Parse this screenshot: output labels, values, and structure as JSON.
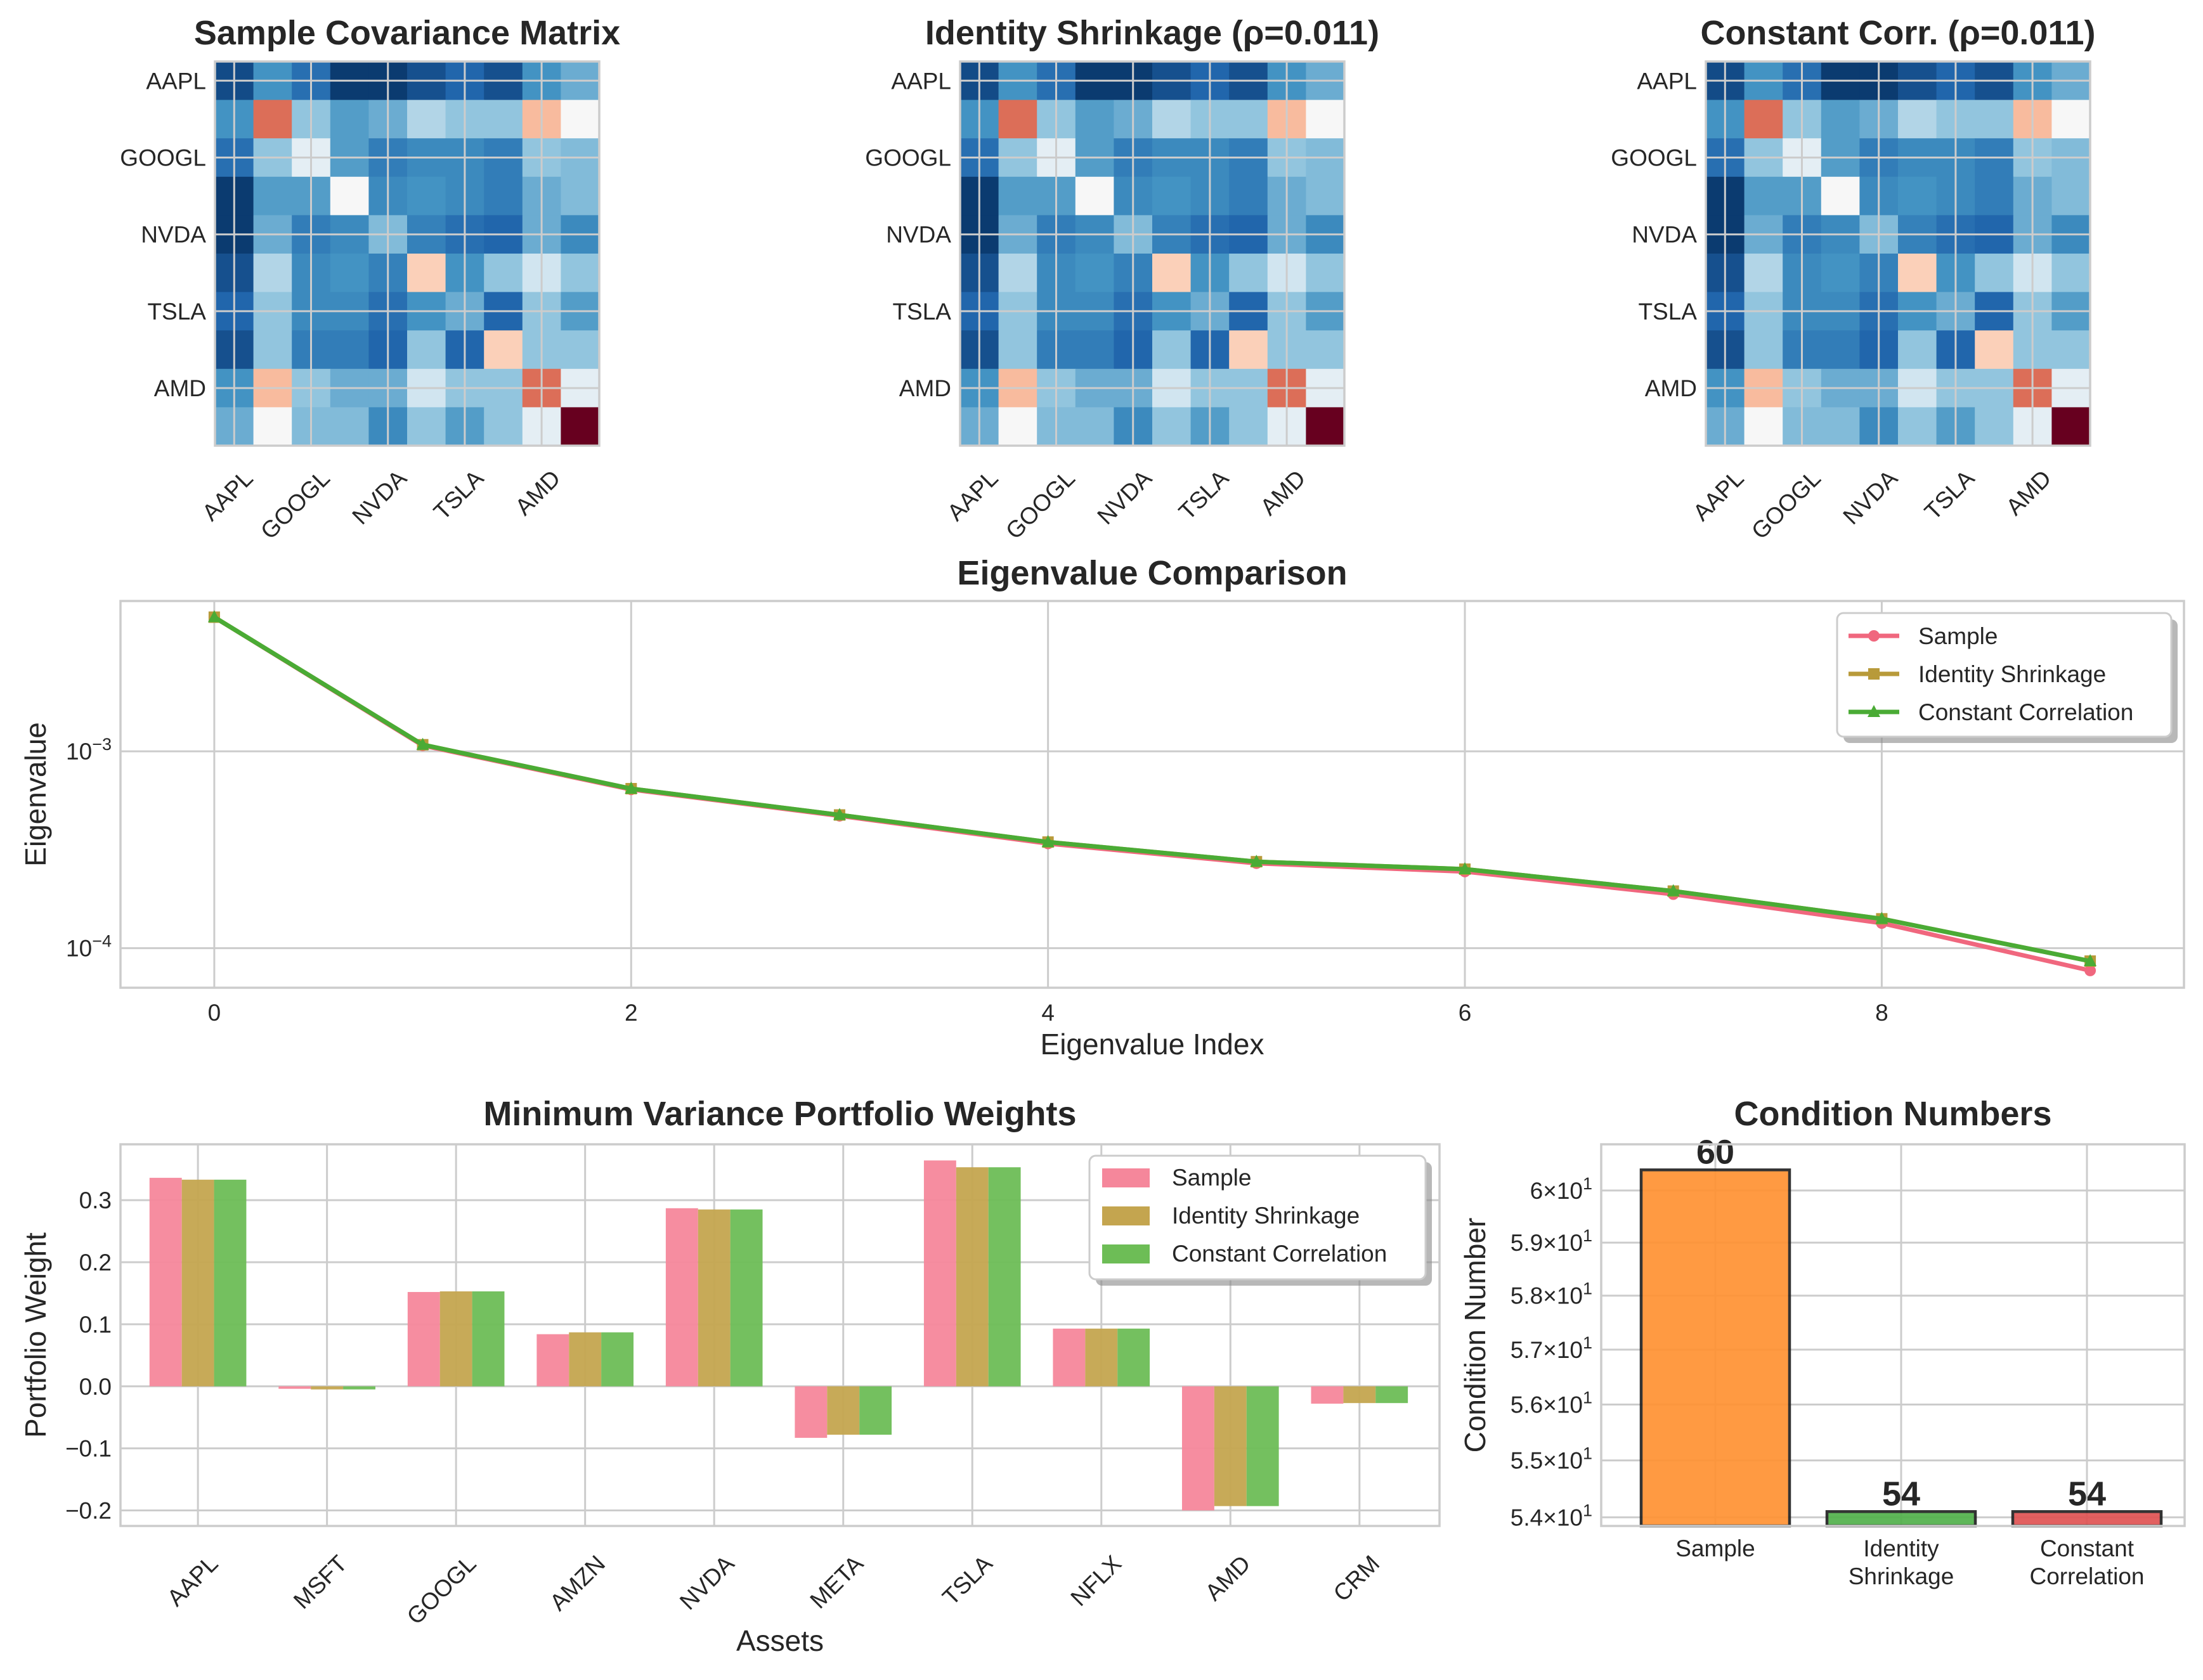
{
  "chart_data": [
    {
      "type": "heatmap",
      "title": "Sample Covariance Matrix",
      "colormap": "RdBu_r",
      "tick_labels": [
        "AAPL",
        "GOOGL",
        "NVDA",
        "TSLA",
        "AMD"
      ],
      "size": 10,
      "tick_every": 2,
      "values": [
        [
          0.05,
          0.2,
          0.12,
          0.02,
          0.02,
          0.06,
          0.1,
          0.06,
          0.2,
          0.25
        ],
        [
          0.2,
          0.78,
          0.3,
          0.22,
          0.25,
          0.35,
          0.3,
          0.3,
          0.66,
          0.5
        ],
        [
          0.12,
          0.3,
          0.45,
          0.22,
          0.15,
          0.18,
          0.18,
          0.15,
          0.3,
          0.28
        ],
        [
          0.02,
          0.22,
          0.22,
          0.5,
          0.18,
          0.2,
          0.18,
          0.15,
          0.25,
          0.28
        ],
        [
          0.02,
          0.25,
          0.15,
          0.18,
          0.28,
          0.16,
          0.12,
          0.1,
          0.25,
          0.18
        ],
        [
          0.06,
          0.35,
          0.18,
          0.2,
          0.16,
          0.62,
          0.2,
          0.3,
          0.4,
          0.3
        ],
        [
          0.1,
          0.3,
          0.18,
          0.18,
          0.12,
          0.2,
          0.25,
          0.1,
          0.3,
          0.22
        ],
        [
          0.06,
          0.3,
          0.15,
          0.15,
          0.1,
          0.3,
          0.1,
          0.62,
          0.3,
          0.3
        ],
        [
          0.2,
          0.66,
          0.3,
          0.25,
          0.25,
          0.4,
          0.3,
          0.3,
          0.78,
          0.45
        ],
        [
          0.25,
          0.5,
          0.28,
          0.28,
          0.18,
          0.3,
          0.22,
          0.3,
          0.45,
          1.0
        ]
      ]
    },
    {
      "type": "heatmap",
      "title": "Identity Shrinkage (ρ=0.011)",
      "colormap": "RdBu_r",
      "tick_labels": [
        "AAPL",
        "GOOGL",
        "NVDA",
        "TSLA",
        "AMD"
      ],
      "size": 10,
      "tick_every": 2,
      "values": [
        [
          0.05,
          0.2,
          0.12,
          0.02,
          0.02,
          0.06,
          0.1,
          0.06,
          0.2,
          0.25
        ],
        [
          0.2,
          0.78,
          0.3,
          0.22,
          0.25,
          0.35,
          0.3,
          0.3,
          0.66,
          0.5
        ],
        [
          0.12,
          0.3,
          0.45,
          0.22,
          0.15,
          0.18,
          0.18,
          0.15,
          0.3,
          0.28
        ],
        [
          0.02,
          0.22,
          0.22,
          0.5,
          0.18,
          0.2,
          0.18,
          0.15,
          0.25,
          0.28
        ],
        [
          0.02,
          0.25,
          0.15,
          0.18,
          0.28,
          0.16,
          0.12,
          0.1,
          0.25,
          0.18
        ],
        [
          0.06,
          0.35,
          0.18,
          0.2,
          0.16,
          0.62,
          0.2,
          0.3,
          0.4,
          0.3
        ],
        [
          0.1,
          0.3,
          0.18,
          0.18,
          0.12,
          0.2,
          0.25,
          0.1,
          0.3,
          0.22
        ],
        [
          0.06,
          0.3,
          0.15,
          0.15,
          0.1,
          0.3,
          0.1,
          0.62,
          0.3,
          0.3
        ],
        [
          0.2,
          0.66,
          0.3,
          0.25,
          0.25,
          0.4,
          0.3,
          0.3,
          0.78,
          0.45
        ],
        [
          0.25,
          0.5,
          0.28,
          0.28,
          0.18,
          0.3,
          0.22,
          0.3,
          0.45,
          1.0
        ]
      ]
    },
    {
      "type": "heatmap",
      "title": "Constant Corr. (ρ=0.011)",
      "colormap": "RdBu_r",
      "tick_labels": [
        "AAPL",
        "GOOGL",
        "NVDA",
        "TSLA",
        "AMD"
      ],
      "size": 10,
      "tick_every": 2,
      "values": [
        [
          0.05,
          0.2,
          0.12,
          0.02,
          0.02,
          0.06,
          0.1,
          0.06,
          0.2,
          0.25
        ],
        [
          0.2,
          0.78,
          0.3,
          0.22,
          0.25,
          0.35,
          0.3,
          0.3,
          0.66,
          0.5
        ],
        [
          0.12,
          0.3,
          0.45,
          0.22,
          0.15,
          0.18,
          0.18,
          0.15,
          0.3,
          0.28
        ],
        [
          0.02,
          0.22,
          0.22,
          0.5,
          0.18,
          0.2,
          0.18,
          0.15,
          0.25,
          0.28
        ],
        [
          0.02,
          0.25,
          0.15,
          0.18,
          0.28,
          0.16,
          0.12,
          0.1,
          0.25,
          0.18
        ],
        [
          0.06,
          0.35,
          0.18,
          0.2,
          0.16,
          0.62,
          0.2,
          0.3,
          0.4,
          0.3
        ],
        [
          0.1,
          0.3,
          0.18,
          0.18,
          0.12,
          0.2,
          0.25,
          0.1,
          0.3,
          0.22
        ],
        [
          0.06,
          0.3,
          0.15,
          0.15,
          0.1,
          0.3,
          0.1,
          0.62,
          0.3,
          0.3
        ],
        [
          0.2,
          0.66,
          0.3,
          0.25,
          0.25,
          0.4,
          0.3,
          0.3,
          0.78,
          0.45
        ],
        [
          0.25,
          0.5,
          0.28,
          0.28,
          0.18,
          0.3,
          0.22,
          0.3,
          0.45,
          1.0
        ]
      ]
    },
    {
      "type": "line",
      "title": "Eigenvalue Comparison",
      "xlabel": "Eigenvalue Index",
      "ylabel": "Eigenvalue",
      "yscale": "log",
      "xlim": [
        -0.45,
        9.45
      ],
      "ylim": [
        6.3e-05,
        0.0058
      ],
      "xticks": [
        0,
        2,
        4,
        6,
        8
      ],
      "yticks": [
        {
          "value": 0.001,
          "base": "10",
          "exp": "−3"
        },
        {
          "value": 0.0001,
          "base": "10",
          "exp": "−4"
        }
      ],
      "x": [
        0,
        1,
        2,
        3,
        4,
        5,
        6,
        7,
        8,
        9
      ],
      "series": [
        {
          "name": "Sample",
          "marker": "circle",
          "color": "#f0677e",
          "values": [
            0.0048,
            0.00107,
            0.00064,
            0.00047,
            0.00034,
            0.00027,
            0.000245,
            0.000188,
            0.000134,
            7.7e-05
          ]
        },
        {
          "name": "Identity Shrinkage",
          "marker": "square",
          "color": "#b89a3a",
          "values": [
            0.0048,
            0.00108,
            0.000646,
            0.000475,
            0.000346,
            0.000275,
            0.000252,
            0.000195,
            0.000141,
            8.6e-05
          ]
        },
        {
          "name": "Constant Correlation",
          "marker": "triangle",
          "color": "#4aab35",
          "values": [
            0.0048,
            0.00108,
            0.000646,
            0.000475,
            0.000346,
            0.000275,
            0.000252,
            0.000195,
            0.000141,
            8.6e-05
          ]
        }
      ],
      "legend": "upper right",
      "grid": true
    },
    {
      "type": "bar",
      "title": "Minimum Variance Portfolio Weights",
      "xlabel": "Assets",
      "ylabel": "Portfolio Weight",
      "ylim": [
        -0.225,
        0.39
      ],
      "yticks": [
        -0.2,
        -0.1,
        0.0,
        0.1,
        0.2,
        0.3
      ],
      "categories": [
        "AAPL",
        "MSFT",
        "GOOGL",
        "AMZN",
        "NVDA",
        "META",
        "TSLA",
        "NFLX",
        "AMD",
        "CRM"
      ],
      "series": [
        {
          "name": "Sample",
          "color": "#f5879b",
          "values": [
            0.336,
            -0.004,
            0.152,
            0.084,
            0.287,
            -0.083,
            0.364,
            0.093,
            -0.2,
            -0.028
          ]
        },
        {
          "name": "Identity Shrinkage",
          "color": "#c4a54f",
          "values": [
            0.333,
            -0.005,
            0.153,
            0.087,
            0.285,
            -0.078,
            0.353,
            0.093,
            -0.193,
            -0.027
          ]
        },
        {
          "name": "Constant Correlation",
          "color": "#6dbd56",
          "values": [
            0.333,
            -0.005,
            0.153,
            0.087,
            0.285,
            -0.078,
            0.353,
            0.093,
            -0.193,
            -0.027
          ]
        }
      ],
      "legend": "upper right",
      "grid": true
    },
    {
      "type": "bar",
      "title": "Condition Numbers",
      "ylabel": "Condition Number",
      "yscale": "log",
      "ylim": [
        53.85,
        60.9
      ],
      "categories": [
        [
          "Sample"
        ],
        [
          "Identity",
          "Shrinkage"
        ],
        [
          "Constant",
          "Correlation"
        ]
      ],
      "values": [
        60.4,
        54.1,
        54.1
      ],
      "data_labels": [
        "60",
        "54",
        "54"
      ],
      "colors": [
        "#ff9233",
        "#52b04b",
        "#e05353"
      ],
      "yticks": [
        {
          "value": 54,
          "mant": "5.4",
          "base": "10",
          "exp": "1"
        },
        {
          "value": 55,
          "mant": "5.5",
          "base": "10",
          "exp": "1"
        },
        {
          "value": 56,
          "mant": "5.6",
          "base": "10",
          "exp": "1"
        },
        {
          "value": 57,
          "mant": "5.7",
          "base": "10",
          "exp": "1"
        },
        {
          "value": 58,
          "mant": "5.8",
          "base": "10",
          "exp": "1"
        },
        {
          "value": 59,
          "mant": "5.9",
          "base": "10",
          "exp": "1"
        },
        {
          "value": 60,
          "mant": "6",
          "base": "10",
          "exp": "1"
        }
      ],
      "grid": true
    }
  ]
}
